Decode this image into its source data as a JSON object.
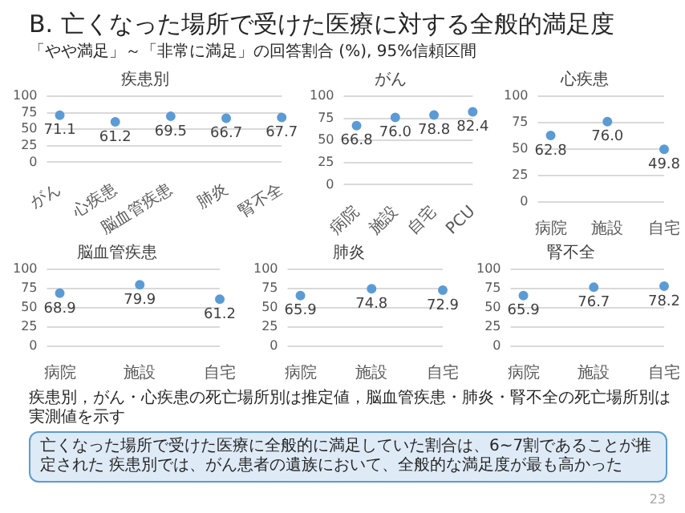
{
  "chart_data": [
    {
      "type": "scatter",
      "title": "疾患別",
      "categories": [
        "がん",
        "心疾患",
        "脳血管疾患",
        "肺炎",
        "腎不全"
      ],
      "values": [
        71.1,
        61.2,
        69.5,
        66.7,
        67.7
      ],
      "value_labels": [
        "71.1",
        "61.2",
        "69.5",
        "66.7",
        "67.7"
      ],
      "color": "#5b9bd5",
      "ylim": [
        0,
        100
      ],
      "yticks": [
        0,
        25,
        50,
        75,
        100
      ],
      "grid": "y",
      "marker": "circle",
      "annotations": [
        "B. 亡くなった場所で受けた医療に対する全般的満足度",
        "「やや満足」～「非常に満足」の回答割合 (%), 95%信頼区間",
        "疾患別，がん・心疾患の死亡場所別は推定値，脳血管疾患・肺炎・腎不全の死亡場所別は実測値を示す",
        "亡くなった場所で受けた医療に全般的に満足していた割合は、6~7割であることが推定された 疾患別では、がん患者の遺族において、全般的な満足度が最も高かった",
        "23"
      ]
    },
    {
      "type": "scatter",
      "title": "がん",
      "categories": [
        "病院",
        "施設",
        "自宅",
        "PCU"
      ],
      "values": [
        66.8,
        76.0,
        78.8,
        82.4
      ],
      "value_labels": [
        "66.8",
        "76.0",
        "78.8",
        "82.4"
      ],
      "color": "#5b9bd5",
      "ylim": [
        0,
        100
      ],
      "yticks": [
        0,
        25,
        50,
        75,
        100
      ],
      "grid": "y",
      "marker": "circle"
    },
    {
      "type": "scatter",
      "title": "心疾患",
      "categories": [
        "病院",
        "施設",
        "自宅"
      ],
      "values": [
        62.8,
        76.0,
        49.8
      ],
      "value_labels": [
        "62.8",
        "76.0",
        "49.8"
      ],
      "color": "#5b9bd5",
      "ylim": [
        0,
        100
      ],
      "yticks": [
        0,
        25,
        50,
        75,
        100
      ],
      "grid": "y",
      "marker": "circle"
    },
    {
      "type": "scatter",
      "title": "脳血管疾患",
      "categories": [
        "病院",
        "施設",
        "自宅"
      ],
      "values": [
        68.9,
        79.9,
        61.2
      ],
      "value_labels": [
        "68.9",
        "79.9",
        "61.2"
      ],
      "color": "#5b9bd5",
      "ylim": [
        0,
        100
      ],
      "yticks": [
        0,
        25,
        50,
        75,
        100
      ],
      "grid": "y",
      "marker": "circle"
    },
    {
      "type": "scatter",
      "title": "肺炎",
      "categories": [
        "病院",
        "施設",
        "自宅"
      ],
      "values": [
        65.9,
        74.8,
        72.9
      ],
      "value_labels": [
        "65.9",
        "74.8",
        "72.9"
      ],
      "color": "#5b9bd5",
      "ylim": [
        0,
        100
      ],
      "yticks": [
        0,
        25,
        50,
        75,
        100
      ],
      "grid": "y",
      "marker": "circle"
    },
    {
      "type": "scatter",
      "title": "腎不全",
      "categories": [
        "病院",
        "施設",
        "自宅"
      ],
      "values": [
        65.9,
        76.7,
        78.2
      ],
      "value_labels": [
        "65.9",
        "76.7",
        "78.2"
      ],
      "color": "#5b9bd5",
      "ylim": [
        0,
        100
      ],
      "yticks": [
        0,
        25,
        50,
        75,
        100
      ],
      "grid": "y",
      "marker": "circle"
    }
  ]
}
